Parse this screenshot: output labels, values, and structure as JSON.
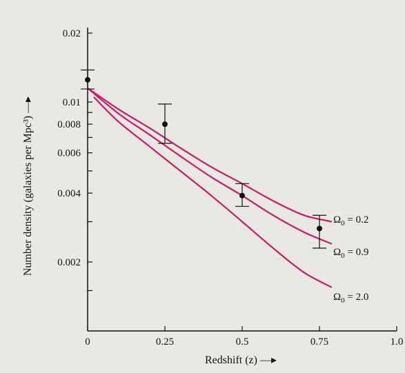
{
  "chart_data": {
    "type": "line",
    "xlabel": "Redshift (z) —▸",
    "ylabel": "Number density (galaxies per Mpc³) —▸",
    "x_ticks": [
      "0",
      "0.25",
      "0.5",
      "0.75",
      "1.0"
    ],
    "x_tick_values": [
      0,
      0.25,
      0.5,
      0.75,
      1.0
    ],
    "y_ticks": [
      "0.02",
      "0.01",
      "0.008",
      "0.006",
      "0.004",
      "0.002"
    ],
    "y_tick_values": [
      0.02,
      0.01,
      0.008,
      0.006,
      0.004,
      0.002
    ],
    "xlim": [
      0,
      1.0
    ],
    "ylim": [
      0.001,
      0.02
    ],
    "y_scale": "log",
    "grid": false,
    "colors": {
      "curve": "#d6136a",
      "axis": "#111111",
      "points": "#111111"
    },
    "series": [
      {
        "name": "Ω₀ = 0.2",
        "x": [
          0,
          0.1,
          0.2,
          0.3,
          0.4,
          0.5,
          0.6,
          0.7,
          0.79
        ],
        "y": [
          0.0115,
          0.0093,
          0.0077,
          0.0063,
          0.0052,
          0.0044,
          0.0037,
          0.0032,
          0.003
        ]
      },
      {
        "name": "Ω₀ = 0.9",
        "x": [
          0,
          0.1,
          0.2,
          0.3,
          0.4,
          0.5,
          0.6,
          0.7,
          0.79
        ],
        "y": [
          0.0115,
          0.0089,
          0.0072,
          0.0058,
          0.0047,
          0.0039,
          0.0032,
          0.0027,
          0.0024
        ]
      },
      {
        "name": "Ω₀ = 2.0",
        "x": [
          0.02,
          0.1,
          0.2,
          0.3,
          0.4,
          0.5,
          0.6,
          0.7,
          0.79
        ],
        "y": [
          0.0105,
          0.0082,
          0.0064,
          0.005,
          0.0039,
          0.003,
          0.0023,
          0.0018,
          0.00155
        ]
      }
    ],
    "points": [
      {
        "x": 0,
        "y": 0.0125,
        "y_low": 0.0114,
        "y_high": 0.0138
      },
      {
        "x": 0.25,
        "y": 0.008,
        "y_low": 0.0066,
        "y_high": 0.0098
      },
      {
        "x": 0.5,
        "y": 0.0039,
        "y_low": 0.0035,
        "y_high": 0.0044
      },
      {
        "x": 0.75,
        "y": 0.0028,
        "y_low": 0.0023,
        "y_high": 0.0032
      }
    ],
    "series_labels": [
      {
        "prefix": "Ω",
        "sub": "0",
        "suffix": " = 0.2"
      },
      {
        "prefix": "Ω",
        "sub": "0",
        "suffix": " = 0.9"
      },
      {
        "prefix": "Ω",
        "sub": "0",
        "suffix": " = 2.0"
      }
    ]
  }
}
